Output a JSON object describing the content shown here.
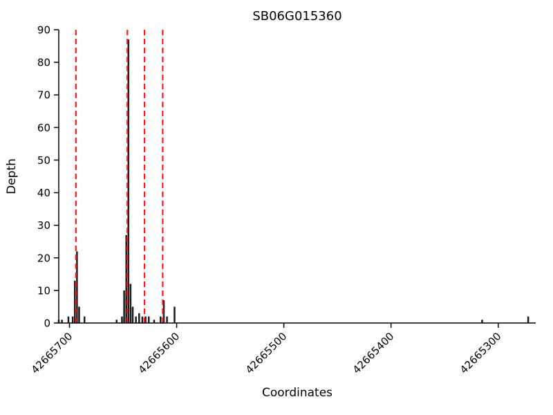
{
  "figure": {
    "title": "SB06G015360",
    "xlabel": "Coordinates",
    "ylabel": "Depth"
  },
  "chart_data": {
    "type": "bar",
    "title": "SB06G015360",
    "xlabel": "Coordinates",
    "ylabel": "Depth",
    "x_axis_reversed": true,
    "xlim": [
      42665710,
      42665265
    ],
    "ylim": [
      0,
      90
    ],
    "x_ticks": [
      "42665700",
      "42665600",
      "42665500",
      "42665400",
      "42665300"
    ],
    "x_tick_values": [
      42665700,
      42665600,
      42665500,
      42665400,
      42665300
    ],
    "y_ticks": [
      0,
      10,
      20,
      30,
      40,
      50,
      60,
      70,
      80,
      90
    ],
    "grid": false,
    "legend": "none",
    "bar_color": "#1a1a1a",
    "vline_color": "#ff1a1a",
    "vline_style": "dashed",
    "vlines": [
      42665694,
      42665646,
      42665630,
      42665613
    ],
    "bars": [
      {
        "x": 42665710,
        "depth": 1
      },
      {
        "x": 42665707,
        "depth": 1
      },
      {
        "x": 42665701,
        "depth": 2
      },
      {
        "x": 42665697,
        "depth": 2
      },
      {
        "x": 42665695,
        "depth": 13
      },
      {
        "x": 42665693,
        "depth": 22
      },
      {
        "x": 42665691,
        "depth": 5
      },
      {
        "x": 42665686,
        "depth": 2
      },
      {
        "x": 42665656,
        "depth": 1
      },
      {
        "x": 42665651,
        "depth": 2
      },
      {
        "x": 42665649,
        "depth": 10
      },
      {
        "x": 42665647,
        "depth": 27
      },
      {
        "x": 42665645,
        "depth": 87
      },
      {
        "x": 42665643,
        "depth": 12
      },
      {
        "x": 42665641,
        "depth": 5
      },
      {
        "x": 42665638,
        "depth": 2
      },
      {
        "x": 42665635,
        "depth": 3
      },
      {
        "x": 42665632,
        "depth": 2
      },
      {
        "x": 42665629,
        "depth": 2
      },
      {
        "x": 42665626,
        "depth": 2
      },
      {
        "x": 42665621,
        "depth": 1
      },
      {
        "x": 42665615,
        "depth": 2
      },
      {
        "x": 42665612,
        "depth": 7
      },
      {
        "x": 42665609,
        "depth": 2
      },
      {
        "x": 42665602,
        "depth": 5
      },
      {
        "x": 42665315,
        "depth": 1
      },
      {
        "x": 42665272,
        "depth": 2
      }
    ]
  }
}
